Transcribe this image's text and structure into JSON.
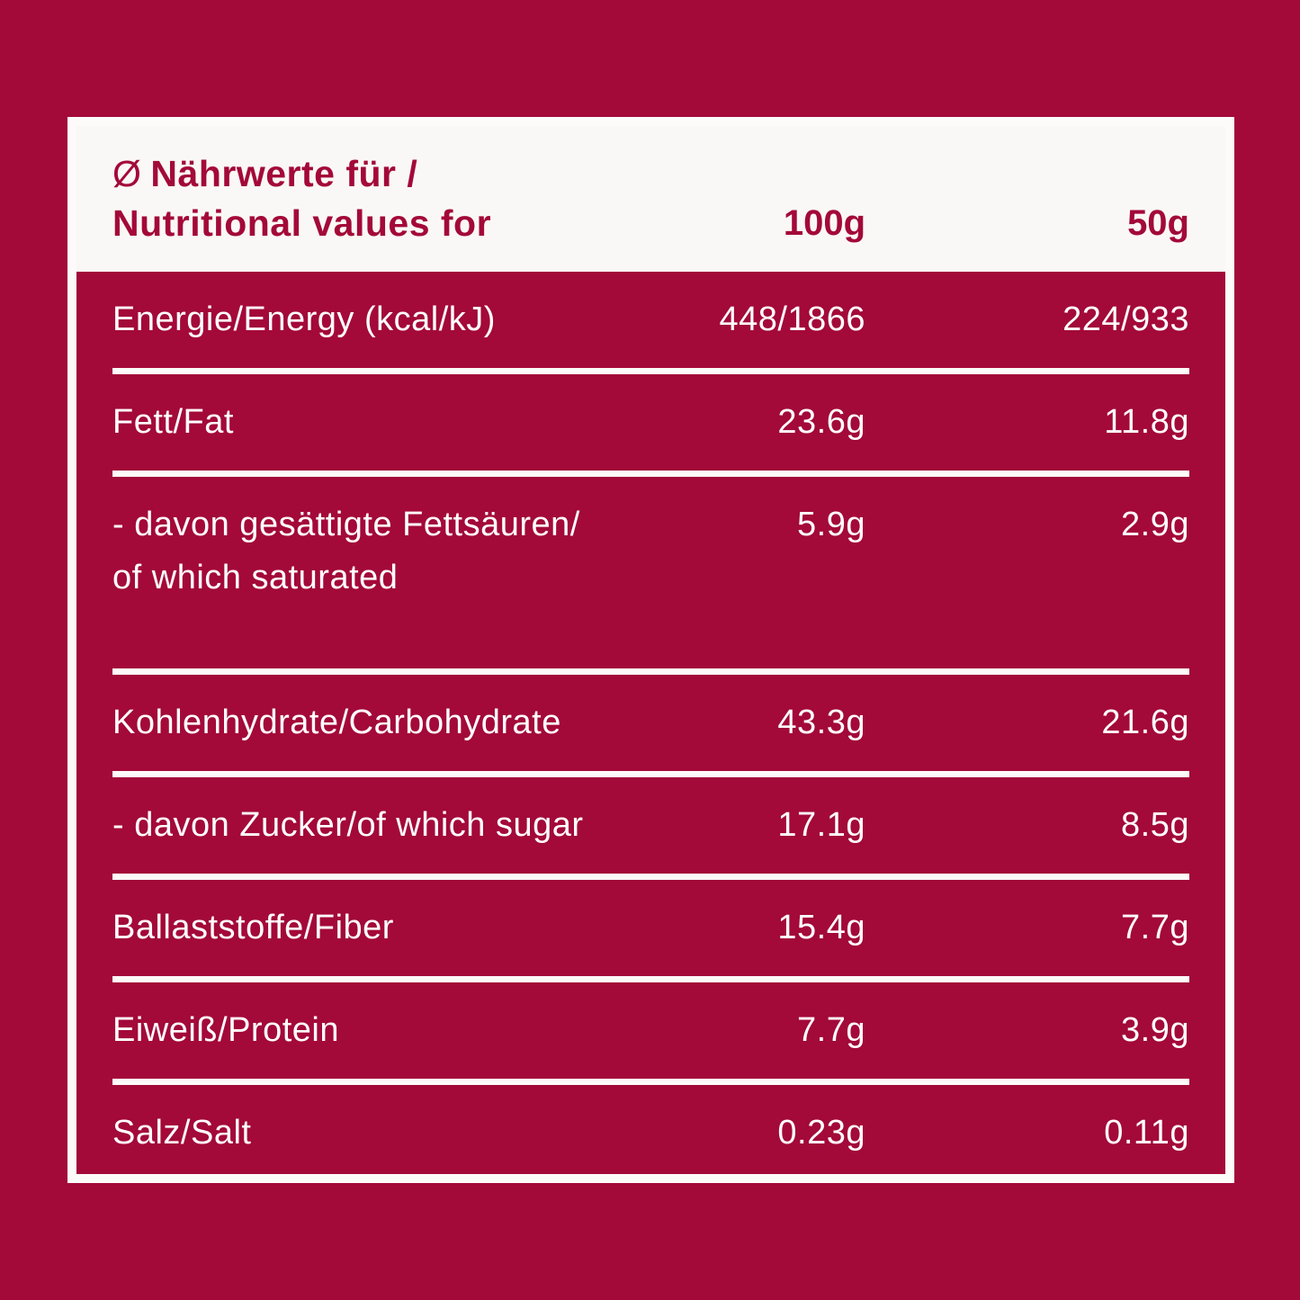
{
  "colors": {
    "background": "#A30939",
    "header_bg": "#FAF8F6",
    "line": "#FCFBFA",
    "text_light": "#FFFFFF"
  },
  "header": {
    "avg_symbol": "Ø",
    "title_line1": "Nährwerte für /",
    "title_line2": "Nutritional values for",
    "columns": [
      "100g",
      "50g"
    ]
  },
  "table": {
    "rows": [
      {
        "label": "Energie/Energy (kcal/kJ)",
        "per_100g": "448/1866",
        "per_50g": "224/933"
      },
      {
        "label": "Fett/Fat",
        "per_100g": "23.6g",
        "per_50g": "11.8g"
      },
      {
        "label": "- davon gesättigte Fettsäuren/\nof which saturated",
        "per_100g": "5.9g",
        "per_50g": "2.9g"
      },
      {
        "label": "Kohlenhydrate/Carbohydrate",
        "per_100g": "43.3g",
        "per_50g": "21.6g"
      },
      {
        "label": "- davon Zucker/of which sugar",
        "per_100g": "17.1g",
        "per_50g": "8.5g"
      },
      {
        "label": "Ballaststoffe/Fiber",
        "per_100g": "15.4g",
        "per_50g": "7.7g"
      },
      {
        "label": "Eiweiß/Protein",
        "per_100g": "7.7g",
        "per_50g": "3.9g"
      },
      {
        "label": "Salz/Salt",
        "per_100g": "0.23g",
        "per_50g": "0.11g"
      }
    ]
  }
}
